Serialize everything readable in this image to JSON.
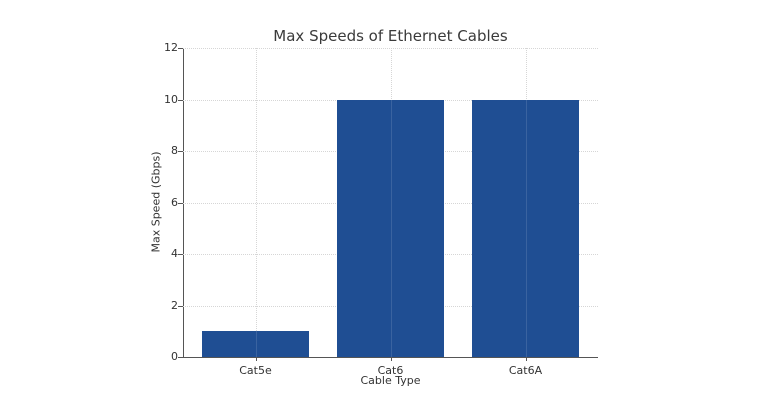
{
  "chart_data": {
    "type": "bar",
    "title": "Max Speeds of Ethernet Cables",
    "xlabel": "Cable Type",
    "ylabel": "Max Speed (Gbps)",
    "categories": [
      "Cat5e",
      "Cat6",
      "Cat6A"
    ],
    "values": [
      1,
      10,
      10
    ],
    "ylim": [
      0,
      12
    ],
    "yticks": [
      "0",
      "2",
      "4",
      "6",
      "8",
      "10",
      "12"
    ],
    "grid": true,
    "legend": null,
    "bar_color": "#1f4e93"
  }
}
